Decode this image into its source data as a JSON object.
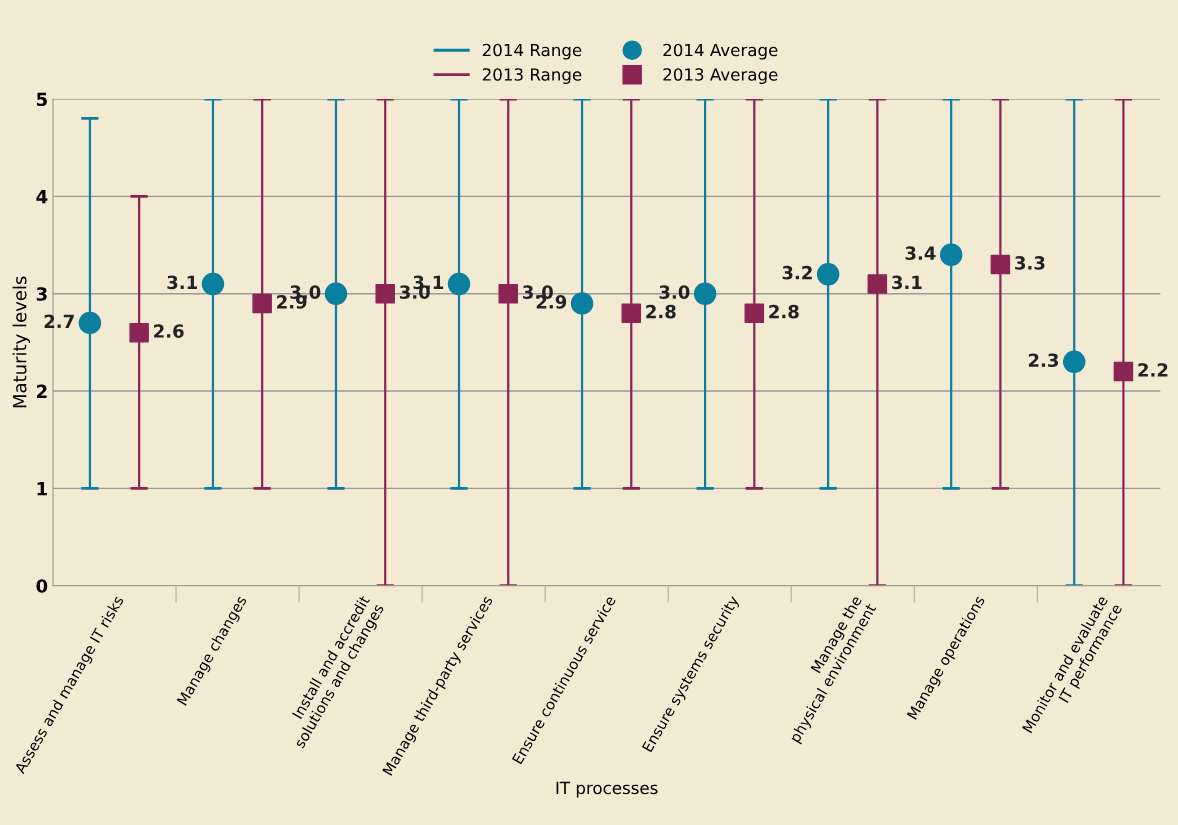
{
  "chart_data": {
    "type": "scatter",
    "xlabel": "IT processes",
    "ylabel": "Maturity levels",
    "categories": [
      "Assess and manage IT risks",
      "Manage changes",
      "Install and accredit\nsolutions and changes",
      "Manage third-party services",
      "Ensure continuous service",
      "Ensure systems security",
      "Manage the\nphysical environment",
      "Manage operations",
      "Monitor and evaluate\nIT performance"
    ],
    "ylim": [
      0,
      5
    ],
    "yticks": [
      0,
      1,
      2,
      3,
      4,
      5
    ],
    "grid": "y",
    "legend": "top",
    "series": [
      {
        "name": "2014 Range",
        "type": "bar",
        "color": "#0a7fa0",
        "base": [
          1,
          1,
          1,
          1,
          1,
          1,
          1,
          1,
          0
        ],
        "values": [
          3.8,
          4,
          4,
          4,
          4,
          4,
          4,
          4,
          5
        ]
      },
      {
        "name": "2013 Range",
        "type": "bar",
        "color": "#8b2455",
        "base": [
          1,
          1,
          0,
          0,
          1,
          1,
          0,
          1,
          0
        ],
        "values": [
          3,
          4,
          5,
          5,
          4,
          4,
          5,
          4,
          5
        ]
      },
      {
        "name": "2014 Average",
        "marker": "circle",
        "color": "#0a7fa0",
        "values": [
          2.7,
          3.1,
          3.0,
          3.1,
          2.9,
          3.0,
          3.2,
          3.4,
          2.3
        ],
        "value_labels": [
          "2.7",
          "3.1",
          "3.0",
          "3.1",
          "2.9",
          "3.0",
          "3.2",
          "3.4",
          "2.3"
        ]
      },
      {
        "name": "2013 Average",
        "marker": "square",
        "color": "#8b2455",
        "values": [
          2.6,
          2.9,
          3.0,
          3.0,
          2.8,
          2.8,
          3.1,
          3.3,
          2.2
        ],
        "value_labels": [
          "2.6",
          "2.9",
          "3.0",
          "3.0",
          "2.8",
          "2.8",
          "3.1",
          "3.3",
          "2.2"
        ]
      }
    ]
  }
}
